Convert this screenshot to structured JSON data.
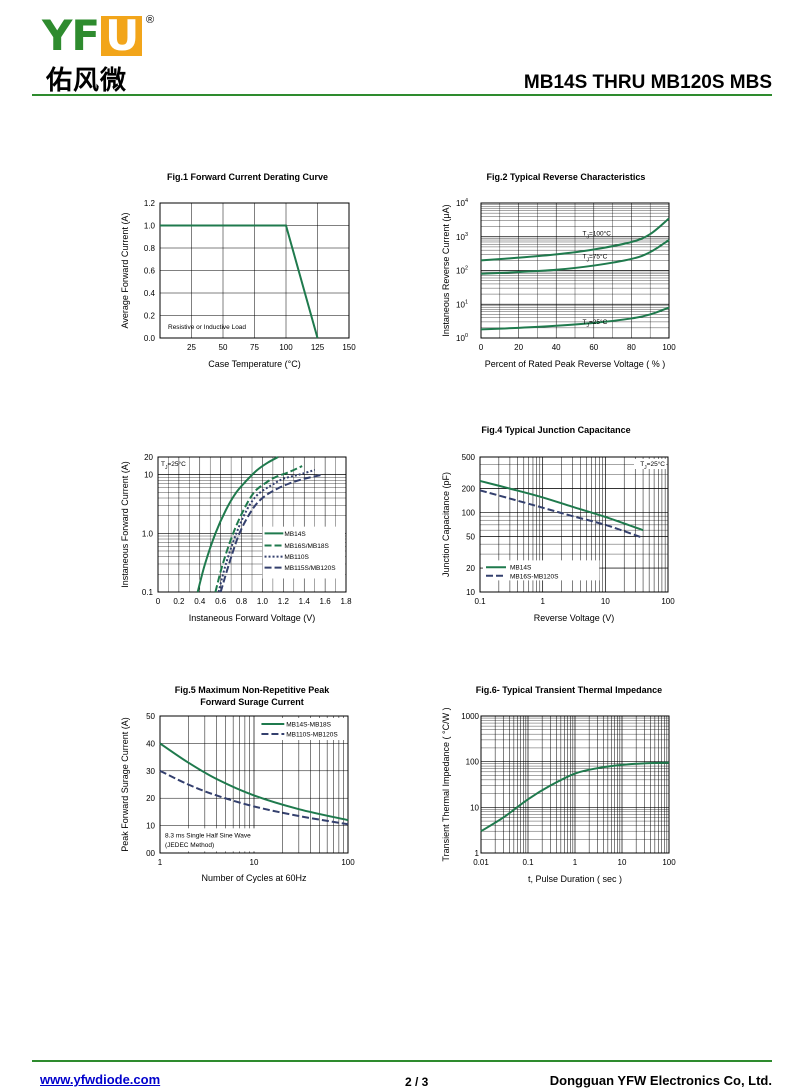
{
  "header": {
    "logo_letters_a": "YF",
    "logo_letters_b": "U",
    "logo_chinese": "佑风微",
    "registered": "®",
    "title": "MB14S THRU MB120S  MBS"
  },
  "footer": {
    "url": "www.yfwdiode.com",
    "page": "2 / 3",
    "company": "Dongguan YFW Electronics Co, Ltd."
  },
  "colors": {
    "brand_green": "#2e8b2e",
    "logo_orange": "#f2a51a",
    "curve_green": "#1f7a4d",
    "curve_navy": "#34406e",
    "link_blue": "#0000cc"
  },
  "chart_data": [
    {
      "id": "fig1",
      "type": "line",
      "title": "Fig.1  Forward Current Derating Curve",
      "xlabel": "Case  Temperature (°C)",
      "ylabel": "Average Forward Current (A)",
      "xlim": [
        0,
        150
      ],
      "ylim": [
        0,
        1.2
      ],
      "xticks": [
        "25",
        "50",
        "75",
        "100",
        "125",
        "150"
      ],
      "yticks": [
        "0.0",
        "0.2",
        "0.4",
        "0.6",
        "0.8",
        "1.0",
        "1.2"
      ],
      "annotation": "Resistive or Inductive Load",
      "series": [
        {
          "x": [
            0,
            100,
            125
          ],
          "y": [
            1.0,
            1.0,
            0.0
          ]
        }
      ]
    },
    {
      "id": "fig2",
      "type": "line",
      "title": "Fig.2  Typical Reverse Characteristics",
      "xlabel": "Percent of Rated Peak Reverse Voltage ( % )",
      "ylabel": "Instaneous Reverse Current (μA)",
      "xlim": [
        0,
        100
      ],
      "ylim": [
        1,
        10000
      ],
      "yscale": "log",
      "xticks": [
        "0",
        "20",
        "40",
        "60",
        "80",
        "100"
      ],
      "ytick_base": "10",
      "ytick_exponents": [
        "0",
        "1",
        "2",
        "3",
        "4"
      ],
      "series": [
        {
          "label_main": "T",
          "label_sub": "J",
          "label_rest": "=100°C",
          "x": [
            0,
            20,
            40,
            60,
            80,
            90,
            100
          ],
          "y": [
            200,
            240,
            300,
            420,
            700,
            1200,
            3500
          ]
        },
        {
          "label_main": "T",
          "label_sub": "J",
          "label_rest": "=75°C",
          "x": [
            0,
            20,
            40,
            60,
            80,
            90,
            100
          ],
          "y": [
            80,
            90,
            105,
            140,
            220,
            350,
            800
          ]
        },
        {
          "label_main": "T",
          "label_sub": "J",
          "label_rest": "=25°C",
          "x": [
            0,
            20,
            40,
            60,
            80,
            90,
            100
          ],
          "y": [
            1.8,
            2.0,
            2.3,
            2.8,
            3.8,
            5,
            8
          ]
        }
      ]
    },
    {
      "id": "fig3",
      "type": "line",
      "title": "",
      "xlabel": "Instaneous Forward Voltage (V)",
      "ylabel": "Instaneous Forward Current (A)",
      "xlim": [
        0,
        1.8
      ],
      "ylim": [
        0.1,
        20
      ],
      "yscale": "log",
      "xticks": [
        "0",
        "0.2",
        "0.4",
        "0.6",
        "0.8",
        "1.0",
        "1.2",
        "1.4",
        "1.6",
        "1.8"
      ],
      "yticks": [
        "0.1",
        "1.0",
        "10",
        "20"
      ],
      "annotation_main": "T",
      "annotation_sub": "J",
      "annotation_rest": "=25°C",
      "series": [
        {
          "name": "MB14S",
          "style": "solid",
          "x": [
            0.38,
            0.45,
            0.55,
            0.65,
            0.75,
            0.85,
            0.95,
            1.05,
            1.15
          ],
          "y": [
            0.1,
            0.3,
            1.0,
            2.5,
            5.0,
            8.0,
            12,
            16,
            20
          ]
        },
        {
          "name": "MB16S/MB18S",
          "style": "dashed",
          "x": [
            0.55,
            0.62,
            0.72,
            0.82,
            0.92,
            1.02,
            1.12,
            1.25,
            1.38
          ],
          "y": [
            0.1,
            0.3,
            1.0,
            2.5,
            5.0,
            7.0,
            9.0,
            11,
            14
          ]
        },
        {
          "name": "MB110S",
          "style": "dotted",
          "x": [
            0.58,
            0.65,
            0.75,
            0.85,
            0.95,
            1.08,
            1.2,
            1.35,
            1.5
          ],
          "y": [
            0.1,
            0.3,
            1.0,
            2.5,
            4.5,
            6.5,
            8.5,
            10,
            12
          ]
        },
        {
          "name": "MB115S/MB120S",
          "style": "dashed",
          "x": [
            0.6,
            0.68,
            0.78,
            0.9,
            1.0,
            1.12,
            1.25,
            1.4,
            1.58
          ],
          "y": [
            0.1,
            0.3,
            1.0,
            2.5,
            4.0,
            5.5,
            7.0,
            8.5,
            10
          ]
        }
      ]
    },
    {
      "id": "fig4",
      "type": "line",
      "title": "Fig.4  Typical Junction Capacitance",
      "xlabel": "Reverse  Voltage (V)",
      "ylabel": "Junction Capacitance (pF)",
      "xlim": [
        0.1,
        100
      ],
      "ylim": [
        10,
        500
      ],
      "xscale": "log",
      "yscale": "log",
      "xticks": [
        "0.1",
        "1",
        "10",
        "100"
      ],
      "yticks": [
        "10",
        "20",
        "50",
        "100",
        "200",
        "500"
      ],
      "annotation_main": "T",
      "annotation_sub": "J",
      "annotation_rest": "=25°C",
      "series": [
        {
          "name": "MB14S",
          "style": "solid",
          "x": [
            0.1,
            0.3,
            1,
            3,
            10,
            40
          ],
          "y": [
            250,
            200,
            155,
            118,
            88,
            60
          ]
        },
        {
          "name": "MB16S-MB120S",
          "style": "dashed",
          "x": [
            0.1,
            0.3,
            1,
            3,
            10,
            40
          ],
          "y": [
            190,
            150,
            115,
            90,
            70,
            48
          ]
        }
      ]
    },
    {
      "id": "fig5",
      "type": "line",
      "title": "Fig.5  Maximum Non-Repetitive Peak",
      "title2": "Forward Surage Current",
      "xlabel": "Number of Cycles at 60Hz",
      "ylabel": "Peak Forward Surage Current (A)",
      "xlim": [
        1,
        100
      ],
      "ylim": [
        0,
        50
      ],
      "xscale": "log",
      "xticks": [
        "1",
        "10",
        "100"
      ],
      "yticks": [
        "00",
        "10",
        "20",
        "30",
        "40",
        "50"
      ],
      "annotation": "8.3 ms Single Half Sine Wave",
      "annotation2": "(JEDEC Method)",
      "series": [
        {
          "name": "MB14S-MB18S",
          "style": "solid",
          "x": [
            1,
            2,
            4,
            10,
            30,
            100
          ],
          "y": [
            40,
            33,
            27,
            21,
            16,
            12
          ]
        },
        {
          "name": "MB110S-MB120S",
          "style": "dashed",
          "x": [
            1,
            2,
            4,
            10,
            30,
            100
          ],
          "y": [
            30,
            25,
            21,
            17,
            13.5,
            10.5
          ]
        }
      ]
    },
    {
      "id": "fig6",
      "type": "line",
      "title": "Fig.6- Typical Transient Thermal Impedance",
      "xlabel": "t, Pulse Duration ( sec )",
      "ylabel": "Transient Thermal Impedance ( °C/W )",
      "xlim": [
        0.01,
        100
      ],
      "ylim": [
        1,
        1000
      ],
      "xscale": "log",
      "yscale": "log",
      "xticks": [
        "0.01",
        "0.1",
        "1",
        "10",
        "100"
      ],
      "yticks": [
        "1",
        "10",
        "100",
        "1000"
      ],
      "series": [
        {
          "style": "solid",
          "x": [
            0.01,
            0.03,
            0.1,
            0.3,
            1,
            3,
            10,
            30,
            100
          ],
          "y": [
            3,
            6,
            15,
            30,
            55,
            72,
            85,
            92,
            95
          ]
        }
      ]
    }
  ]
}
